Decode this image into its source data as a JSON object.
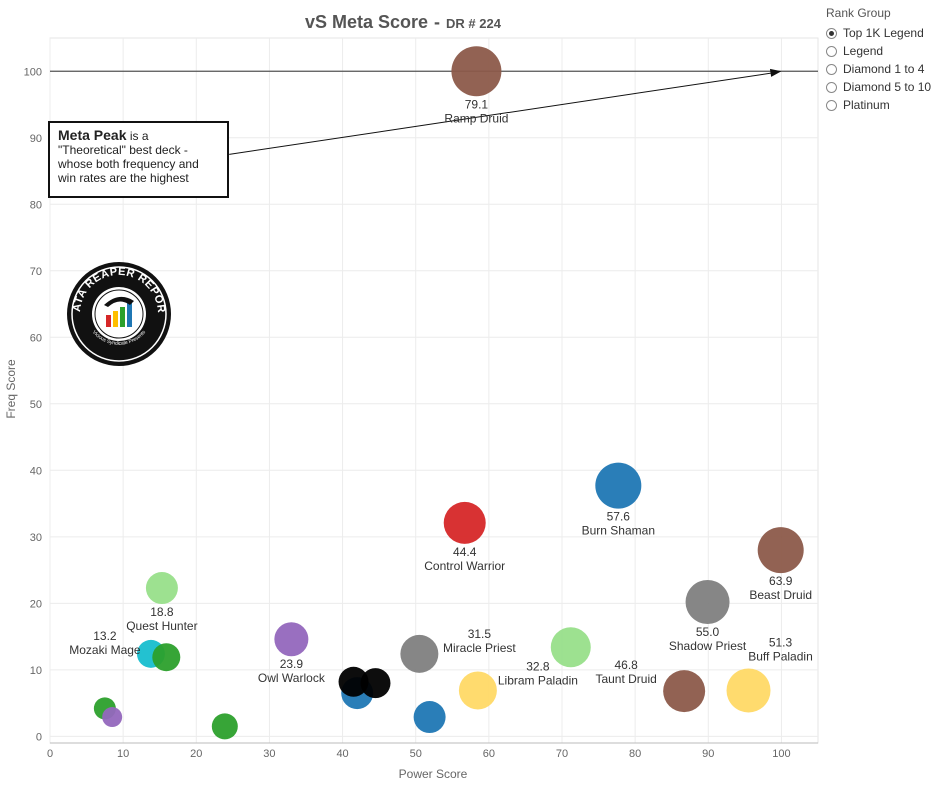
{
  "title": "vS Meta Score",
  "subtitle": "DR # 224",
  "legend": {
    "title": "Rank Group",
    "items": [
      {
        "label": "Top 1K Legend",
        "selected": true
      },
      {
        "label": "Legend",
        "selected": false
      },
      {
        "label": "Diamond 1 to 4",
        "selected": false
      },
      {
        "label": "Diamond 5 to 10",
        "selected": false
      },
      {
        "label": "Platinum",
        "selected": false
      }
    ]
  },
  "annotation": {
    "heading": "Meta Peak",
    "text": "is a \"Theoretical\" best deck - whose both frequency and win rates are the highest"
  },
  "logo": {
    "text": "DATA REAPER REPORT",
    "subtext": "Vicious Syndicate Presents"
  },
  "chart_data": {
    "type": "scatter",
    "title": "vS Meta Score",
    "subtitle": "DR # 224",
    "xlabel": "Power Score",
    "ylabel": "Freq Score",
    "xlim": [
      0,
      105
    ],
    "ylim": [
      -1,
      105
    ],
    "xticks": [
      0,
      10,
      20,
      30,
      40,
      50,
      60,
      70,
      80,
      90,
      100
    ],
    "yticks": [
      0,
      10,
      20,
      30,
      40,
      50,
      60,
      70,
      80,
      90,
      100
    ],
    "grid": true,
    "reference_line": {
      "y": 100
    },
    "annotation_arrow": {
      "from": [
        24.5,
        87.5
      ],
      "to": [
        100,
        100
      ]
    },
    "points": [
      {
        "label": "Ramp Druid",
        "score": "79.1",
        "x": 58.3,
        "y": 100,
        "size": 25,
        "color": "#8c5a4a"
      },
      {
        "label": "Burn Shaman",
        "score": "57.6",
        "x": 77.7,
        "y": 37.7,
        "size": 23,
        "color": "#1f77b4"
      },
      {
        "label": "Control Warrior",
        "score": "44.4",
        "x": 56.7,
        "y": 32.1,
        "size": 21,
        "color": "#d62728"
      },
      {
        "label": "Beast Druid",
        "score": "63.9",
        "x": 99.9,
        "y": 28.0,
        "size": 23,
        "color": "#8c5a4a"
      },
      {
        "label": "Shadow Priest",
        "score": "55.0",
        "x": 89.9,
        "y": 20.2,
        "size": 22,
        "color": "#7f7f7f"
      },
      {
        "label": "Quest Hunter",
        "score": "18.8",
        "x": 15.3,
        "y": 22.3,
        "size": 16,
        "color": "#98df8a"
      },
      {
        "label": "Owl Warlock",
        "score": "23.9",
        "x": 33.0,
        "y": 14.6,
        "size": 17,
        "color": "#9467bd"
      },
      {
        "label": "Mozaki Mage",
        "score": "13.2",
        "x": 13.8,
        "y": 12.4,
        "size": 14,
        "color": "#17becf"
      },
      {
        "label": "",
        "score": "",
        "x": 15.9,
        "y": 11.9,
        "size": 14,
        "color": "#2ca02c"
      },
      {
        "label": "Miracle Priest",
        "score": "31.5",
        "x": 50.5,
        "y": 12.4,
        "size": 19,
        "color": "#7f7f7f"
      },
      {
        "label": "",
        "score": "",
        "x": 71.2,
        "y": 13.4,
        "size": 20,
        "color": "#98df8a"
      },
      {
        "label": "Buff Paladin",
        "score": "51.3",
        "x": 95.5,
        "y": 6.9,
        "size": 22,
        "color": "#ffd966"
      },
      {
        "label": "Taunt Druid",
        "score": "46.8",
        "x": 86.7,
        "y": 6.8,
        "size": 21,
        "color": "#8c5a4a"
      },
      {
        "label": "Libram Paladin",
        "score": "32.8",
        "x": 58.5,
        "y": 6.9,
        "size": 19,
        "color": "#ffd966"
      },
      {
        "label": "",
        "score": "",
        "x": 42.0,
        "y": 6.5,
        "size": 16,
        "color": "#1f77b4"
      },
      {
        "label": "",
        "score": "",
        "x": 44.5,
        "y": 8.0,
        "size": 15,
        "color": "#000000"
      },
      {
        "label": "",
        "score": "",
        "x": 41.5,
        "y": 8.2,
        "size": 15,
        "color": "#000000"
      },
      {
        "label": "",
        "score": "",
        "x": 51.9,
        "y": 2.9,
        "size": 16,
        "color": "#1f77b4"
      },
      {
        "label": "",
        "score": "",
        "x": 23.9,
        "y": 1.5,
        "size": 13,
        "color": "#2ca02c"
      },
      {
        "label": "",
        "score": "",
        "x": 7.5,
        "y": 4.2,
        "size": 11,
        "color": "#2ca02c"
      },
      {
        "label": "",
        "score": "",
        "x": 8.5,
        "y": 2.9,
        "size": 10,
        "color": "#9467bd"
      }
    ]
  }
}
